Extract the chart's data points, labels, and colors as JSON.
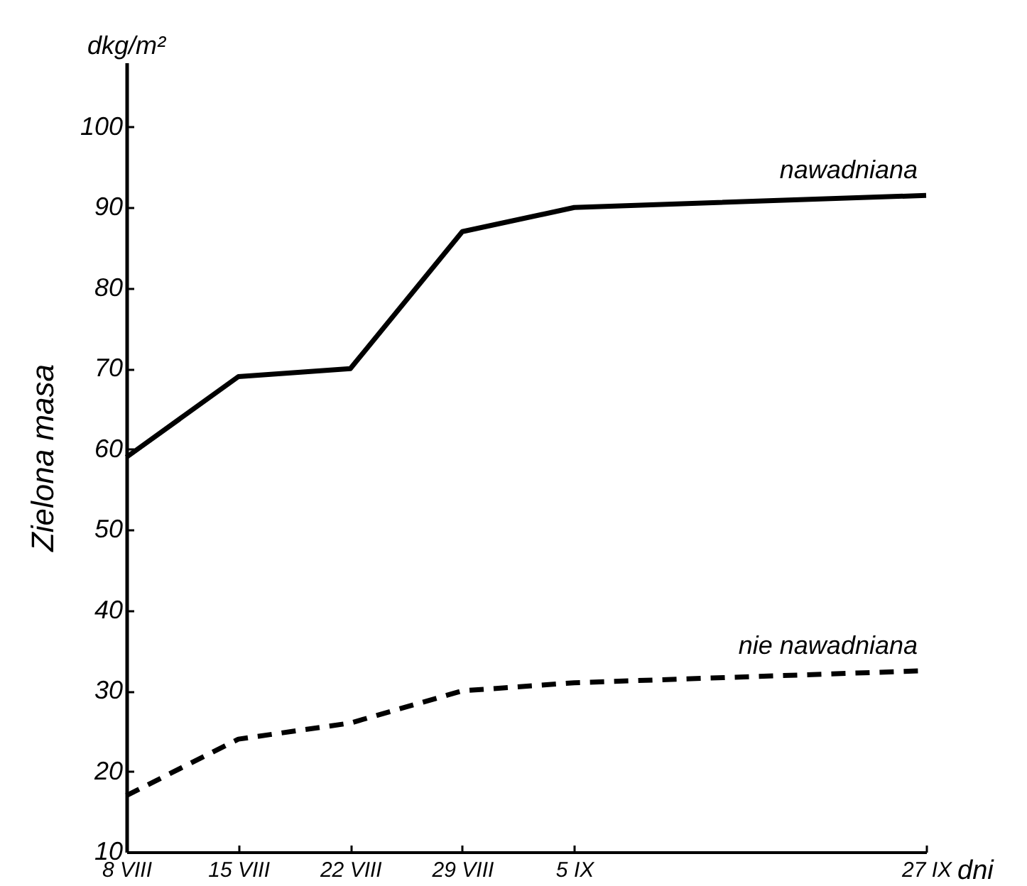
{
  "chart_data": {
    "type": "line",
    "xlabel": "dni",
    "ylabel": "Zielona masa",
    "annotations": [
      "dkg/m²"
    ],
    "x": [
      "--08-08",
      "--08-15",
      "--08-22",
      "--08-29",
      "--09-05",
      "--09-27"
    ],
    "xlim": [
      "--08-08",
      "--09-27"
    ],
    "xticks": [
      {
        "value": "--08-08",
        "label": "8 VIII"
      },
      {
        "value": "--08-15",
        "label": "15 VIII"
      },
      {
        "value": "--08-22",
        "label": "22 VIII"
      },
      {
        "value": "--08-29",
        "label": "29 VIII"
      },
      {
        "value": "--09-05",
        "label": "5 IX"
      },
      {
        "value": "--09-27",
        "label": "27 IX"
      }
    ],
    "ylim": [
      10,
      108
    ],
    "yticks": [
      10,
      20,
      30,
      40,
      50,
      60,
      70,
      80,
      90,
      100
    ],
    "grid": false,
    "marker": "none",
    "series": [
      {
        "name": "nawadniana",
        "color": "#000000",
        "line_style": "solid",
        "values": [
          59,
          69,
          70,
          87,
          90,
          91.5
        ]
      },
      {
        "name": "nie nawadniana",
        "color": "#000000",
        "line_style": "dashed",
        "values": [
          17,
          24,
          26,
          30,
          31,
          32.5
        ]
      }
    ]
  }
}
